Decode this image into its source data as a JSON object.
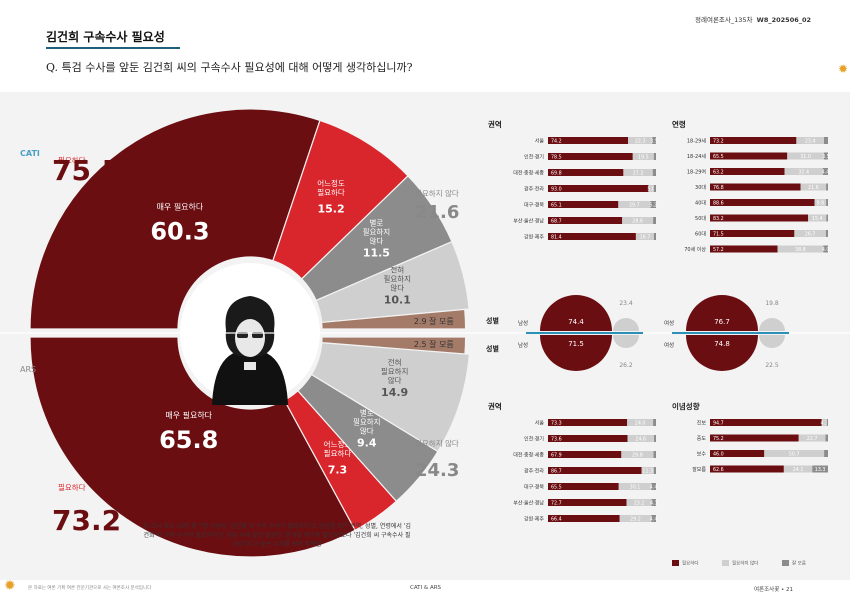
{
  "header": {
    "source": "정례여론조사_135차",
    "code": "W8_202506_02",
    "title": "김건희 구속수사 필요성",
    "question": "Q. 특검 수사를 앞둔 김건희 씨의 구속수사 필요성에 대해 어떻게 생각하십니까?"
  },
  "colors": {
    "dark": "#6b0e12",
    "red": "#d8262c",
    "gray": "#8c8c8c",
    "light": "#cfcfcf",
    "brown": "#a47b68",
    "line": "#2c8fb5"
  },
  "chart_data": [
    {
      "type": "pie",
      "name": "CATI",
      "labels": [
        "매우 필요하다",
        "어느정도 필요하다",
        "별로 필요하지 않다",
        "전혀 필요하지 않다",
        "잘 모름"
      ],
      "values": [
        60.3,
        15.2,
        11.5,
        10.1,
        2.9
      ],
      "total_need_label": "필요하다",
      "total_need": 75.5,
      "total_not_label": "필요하지 않다",
      "total_not": 21.6
    },
    {
      "type": "pie",
      "name": "ARS",
      "labels": [
        "매우 필요하다",
        "어느정도 필요하다",
        "별로 필요하지 않다",
        "전혀 필요하지 않다",
        "잘 모름"
      ],
      "values": [
        65.8,
        7.3,
        9.4,
        14.9,
        2.5
      ],
      "total_need_label": "필요하다",
      "total_need": 73.2,
      "total_not_label": "필요하지 않다",
      "total_not": 24.3
    },
    {
      "type": "bar",
      "title": "권역",
      "categories": [
        "서울",
        "인천·경기",
        "대전·충청·세종",
        "광주·전라",
        "대구·경북",
        "부산·울산·경남",
        "강원·제주"
      ],
      "series": [
        {
          "name": "필요하다",
          "values": [
            74.2,
            78.5,
            69.8,
            93.0,
            65.1,
            68.7,
            81.4
          ]
        },
        {
          "name": "필요하지 않다",
          "values": [
            22.3,
            19.5,
            27.2,
            5.0,
            29.7,
            28.6,
            16.7
          ]
        },
        {
          "name": "잘 모름",
          "values": [
            3.5,
            2.0,
            3.0,
            2.0,
            5.2,
            2.7,
            1.9
          ]
        }
      ]
    },
    {
      "type": "bar",
      "title": "연령",
      "categories": [
        "18-29세",
        "18-24세",
        "18-29여",
        "30대",
        "40대",
        "50대",
        "60대",
        "70세 이상"
      ],
      "series": [
        {
          "name": "필요하다",
          "values": [
            73.2,
            65.5,
            63.2,
            76.8,
            88.6,
            83.2,
            71.5,
            57.2
          ]
        },
        {
          "name": "필요하지 않다",
          "values": [
            23.4,
            31.0,
            32.4,
            21.6,
            9.8,
            15.4,
            26.7,
            38.8
          ]
        },
        {
          "name": "잘 모름",
          "values": [
            3.4,
            3.5,
            4.4,
            1.6,
            1.6,
            1.4,
            1.8,
            4.0
          ]
        }
      ]
    },
    {
      "type": "bar",
      "title": "권역",
      "categories": [
        "서울",
        "인천·경기",
        "대전·충청·세종",
        "광주·전라",
        "대구·경북",
        "부산·울산·경남",
        "강원·제주"
      ],
      "series": [
        {
          "name": "필요하다",
          "values": [
            73.3,
            73.6,
            67.9,
            86.7,
            65.5,
            72.7,
            66.4
          ]
        },
        {
          "name": "필요하지 않다",
          "values": [
            24.0,
            24.6,
            29.8,
            11.3,
            30.1,
            23.2,
            29.2
          ]
        },
        {
          "name": "잘 모름",
          "values": [
            2.7,
            1.8,
            2.3,
            2.0,
            4.4,
            4.1,
            4.4
          ]
        }
      ]
    },
    {
      "type": "bar",
      "title": "이념성향",
      "categories": [
        "진보",
        "중도",
        "보수",
        "잘모름"
      ],
      "series": [
        {
          "name": "필요하다",
          "values": [
            94.7,
            75.2,
            46.0,
            62.6
          ]
        },
        {
          "name": "필요하지 않다",
          "values": [
            4.3,
            22.7,
            50.7,
            24.1
          ]
        },
        {
          "name": "잘 모름",
          "values": [
            1.0,
            2.1,
            3.3,
            13.3
          ]
        }
      ]
    },
    {
      "type": "pie",
      "title": "성별",
      "groups": [
        {
          "label": "남성",
          "cati_need": 74.4,
          "cati_not": 23.4,
          "ars_need": 71.5,
          "ars_not": 26.2
        },
        {
          "label": "여성",
          "cati_need": 76.7,
          "cati_not": 19.8,
          "ars_need": 74.8,
          "ars_not": 22.5
        }
      ]
    }
  ],
  "labels": {
    "cati": "CATI",
    "ars": "ARS",
    "sex": "성별",
    "dk": "잘 모름"
  },
  "note": "두 조사 모두 10명 중 7명 이상이 '김건희 씨 구속 수사가 필요하다'고 응답함 모든 권역, 성별, 연령에서 '김건희 씨 구속 수사가 필요하다'는 응답 우세 앞선 질문인 '윤석열 재구속 필요성'보다 '김건희 씨 구속수사 필요성'이 더 높은 수치를 보여 주목됨",
  "legend": [
    "필요하다",
    "필요하지 않다",
    "잘 모름"
  ],
  "footer": {
    "left": "본 자료는 여론 기획 여론 전문기관으로 사는 여론조사 분석입니다",
    "center": "CATI & ARS",
    "right": "여론조사꽃 • 21"
  }
}
